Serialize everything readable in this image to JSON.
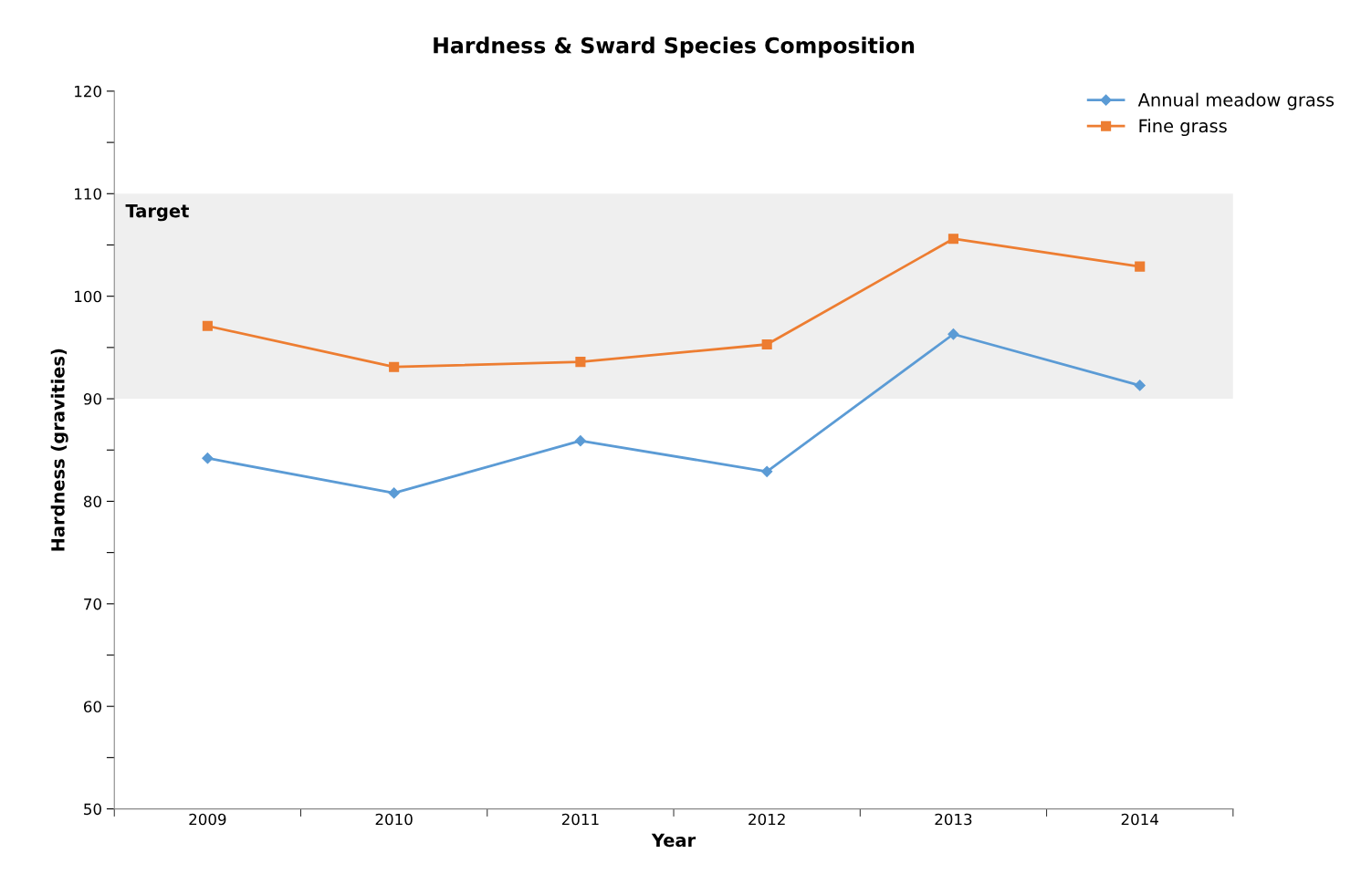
{
  "chart_data": {
    "type": "line",
    "title": "Hardness & Sward Species Composition",
    "xlabel": "Year",
    "ylabel": "Hardness (gravities)",
    "categories": [
      "2009",
      "2010",
      "2011",
      "2012",
      "2013",
      "2014"
    ],
    "series": [
      {
        "name": "Annual meadow grass",
        "color": "#5b9bd5",
        "marker": "diamond",
        "values": [
          84.2,
          80.8,
          85.9,
          82.9,
          96.3,
          91.3
        ]
      },
      {
        "name": "Fine grass",
        "color": "#ed7d31",
        "marker": "square",
        "values": [
          97.1,
          93.1,
          93.6,
          95.3,
          105.6,
          102.9
        ]
      }
    ],
    "ylim": [
      50,
      120
    ],
    "yticks": [
      50,
      {
        "value": 55,
        "label": null
      },
      60,
      {
        "value": 65,
        "label": null
      },
      70,
      {
        "value": 75,
        "label": null
      },
      80,
      {
        "value": 85,
        "label": null
      },
      90,
      {
        "value": 95,
        "label": null
      },
      100,
      {
        "value": 105,
        "label": null
      },
      110,
      {
        "value": 115,
        "label": null
      },
      120
    ],
    "bands": [
      {
        "axis": "y",
        "from": 90,
        "to": 110,
        "label": "Target",
        "color": "#efefef"
      }
    ],
    "grid": false,
    "legend": "top right",
    "line_style": "solid"
  }
}
